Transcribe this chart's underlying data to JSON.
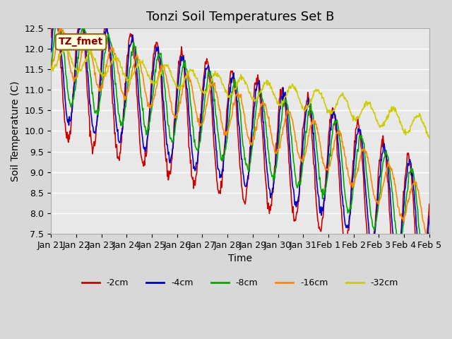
{
  "title": "Tonzi Soil Temperatures Set B",
  "xlabel": "Time",
  "ylabel": "Soil Temperature (C)",
  "ylim": [
    7.5,
    12.5
  ],
  "annotation": "TZ_fmet",
  "tick_labels": [
    "Jan 21",
    "Jan 22",
    "Jan 23",
    "Jan 24",
    "Jan 25",
    "Jan 26",
    "Jan 27",
    "Jan 28",
    "Jan 29",
    "Jan 30",
    "Jan 31",
    "Feb 1",
    "Feb 2",
    "Feb 3",
    "Feb 4",
    "Feb 5"
  ],
  "legend_entries": [
    "-2cm",
    "-4cm",
    "-8cm",
    "-16cm",
    "-32cm"
  ],
  "line_colors": [
    "#cc0000",
    "#0000cc",
    "#00aa00",
    "#ff8800",
    "#cccc00"
  ],
  "title_fontsize": 13,
  "axis_fontsize": 10,
  "tick_fontsize": 9
}
